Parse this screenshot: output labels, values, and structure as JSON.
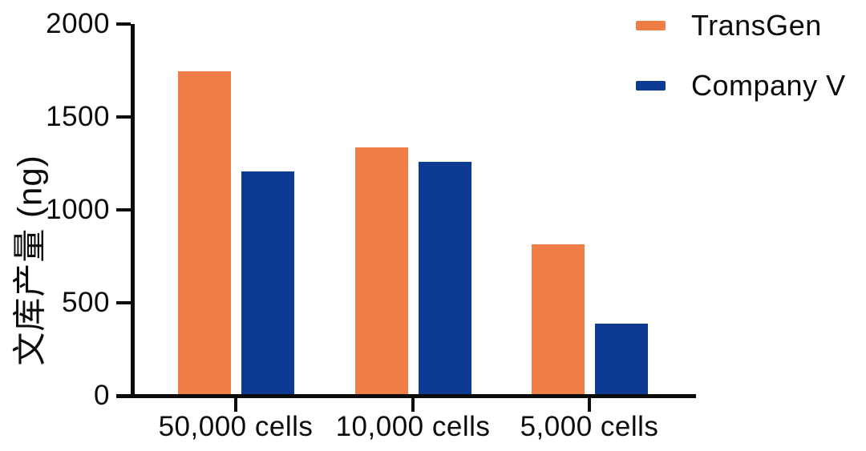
{
  "chart_data": {
    "type": "bar",
    "title": "",
    "ylabel": "文库产量 (ng)",
    "xlabel": "",
    "categories": [
      "50,000 cells",
      "10,000 cells",
      "5,000 cells"
    ],
    "series": [
      {
        "name": "TransGen",
        "color": "#EE7E45",
        "values": [
          1745,
          1335,
          815
        ]
      },
      {
        "name": "Company V",
        "color": "#0D3B94",
        "values": [
          1205,
          1260,
          390
        ]
      }
    ],
    "ylim": [
      0,
      2000
    ],
    "yticks": [
      0,
      500,
      1000,
      1500,
      2000
    ],
    "grid": false,
    "legend_position": "top-right",
    "axis_color": "#0b0b0b"
  }
}
